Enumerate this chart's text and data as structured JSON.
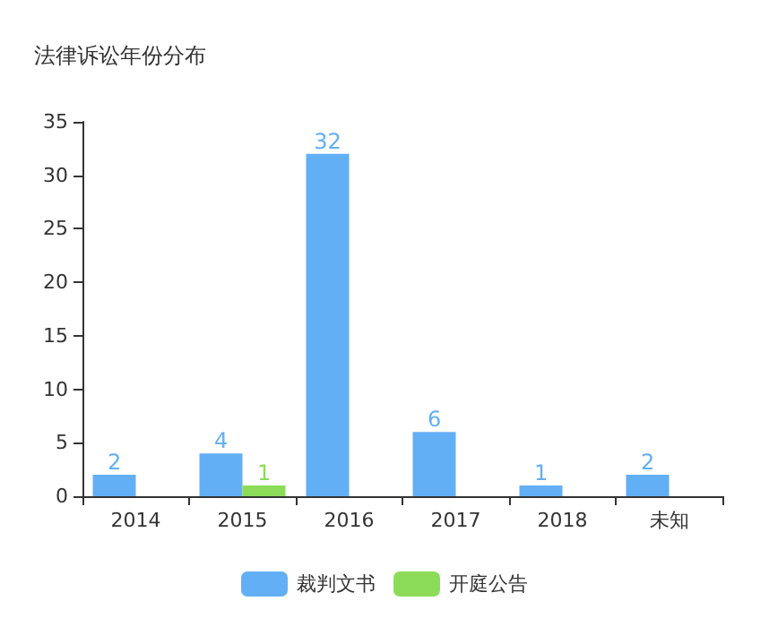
{
  "chart_data": {
    "type": "bar",
    "title": "法律诉讼年份分布",
    "categories": [
      "2014",
      "2015",
      "2016",
      "2017",
      "2018",
      "未知"
    ],
    "series": [
      {
        "name": "裁判文书",
        "color": "#63aff5",
        "values": [
          2,
          4,
          32,
          6,
          1,
          2
        ]
      },
      {
        "name": "开庭公告",
        "color": "#8cdc5a",
        "values": [
          null,
          1,
          null,
          null,
          null,
          null
        ]
      }
    ],
    "ylim": [
      0,
      35
    ],
    "yticks": [
      0,
      5,
      10,
      15,
      20,
      25,
      30,
      35
    ],
    "grid": false,
    "legend": "bottom",
    "data_labels": true
  }
}
